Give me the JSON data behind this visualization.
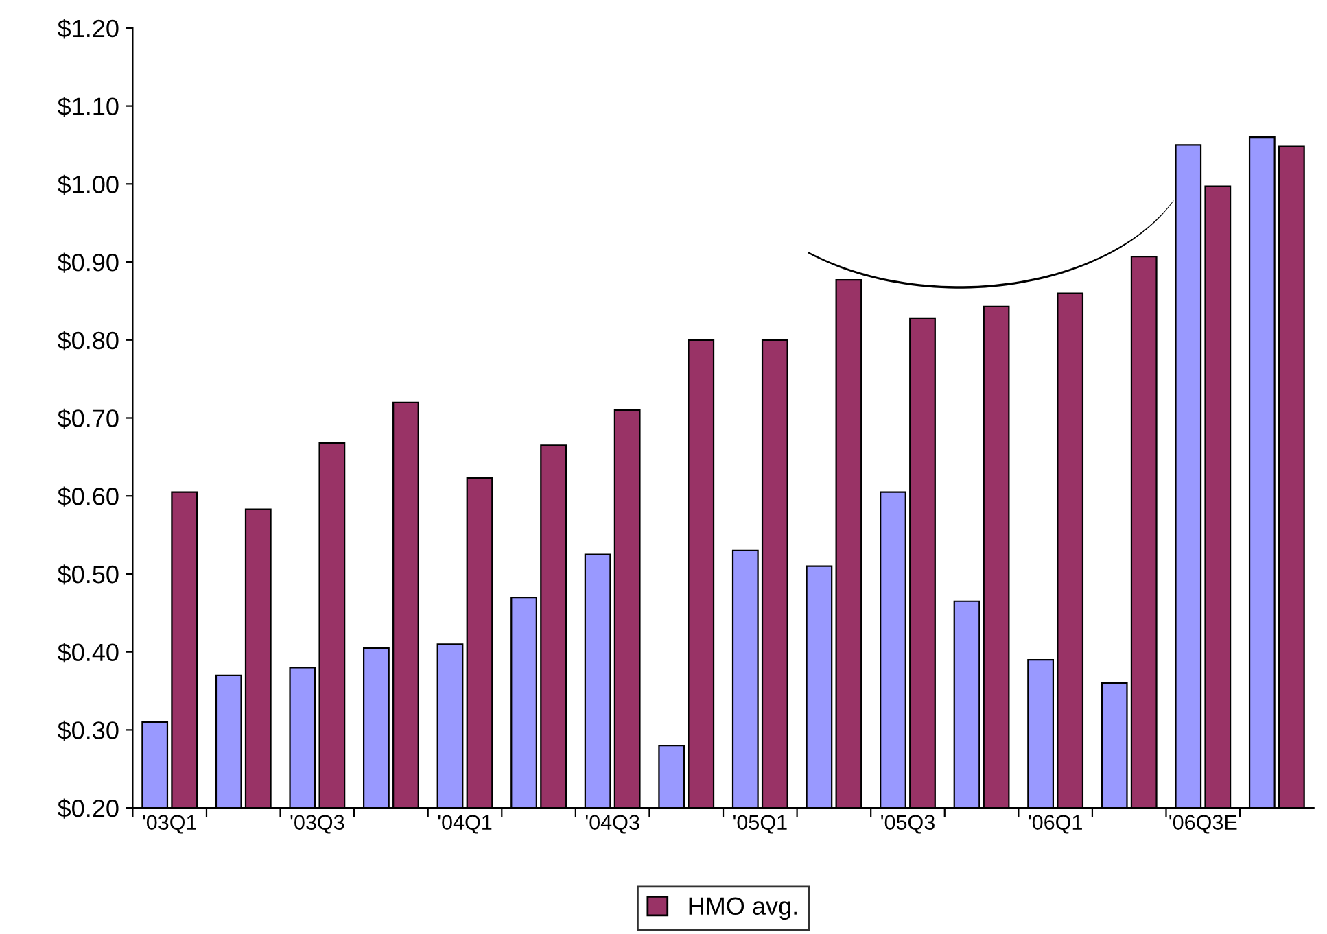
{
  "chart_data": {
    "type": "bar",
    "categories": [
      "'03Q1",
      null,
      "'03Q3",
      null,
      "'04Q1",
      null,
      "'04Q3",
      null,
      "'05Q1",
      null,
      "'05Q3",
      null,
      "'06Q1",
      null,
      "'06Q3E",
      null
    ],
    "series": [
      {
        "color": "#9999ff",
        "values": [
          0.31,
          0.37,
          0.38,
          0.405,
          0.41,
          0.47,
          0.525,
          0.28,
          0.53,
          0.51,
          0.605,
          0.465,
          0.39,
          0.36,
          1.05,
          1.06
        ]
      },
      {
        "name": "HMO avg.",
        "color": "#993366",
        "values": [
          0.605,
          0.583,
          0.668,
          0.72,
          0.623,
          0.665,
          0.71,
          0.8,
          0.8,
          0.877,
          0.828,
          0.843,
          0.86,
          0.907,
          0.997,
          1.048
        ]
      }
    ],
    "ylim": [
      0.2,
      1.2
    ],
    "yticks": [
      {
        "value": 0.2,
        "label": "$0.20"
      },
      {
        "value": 0.3,
        "label": "$0.30"
      },
      {
        "value": 0.4,
        "label": "$0.40"
      },
      {
        "value": 0.5,
        "label": "$0.50"
      },
      {
        "value": 0.6,
        "label": "$0.60"
      },
      {
        "value": 0.7,
        "label": "$0.70"
      },
      {
        "value": 0.8,
        "label": "$0.80"
      },
      {
        "value": 0.9,
        "label": "$0.90"
      },
      {
        "value": 1.0,
        "label": "$1.00"
      },
      {
        "value": 1.1,
        "label": "$1.10"
      },
      {
        "value": 1.2,
        "label": "$1.20"
      }
    ],
    "grid": false,
    "legend": "bottom"
  }
}
